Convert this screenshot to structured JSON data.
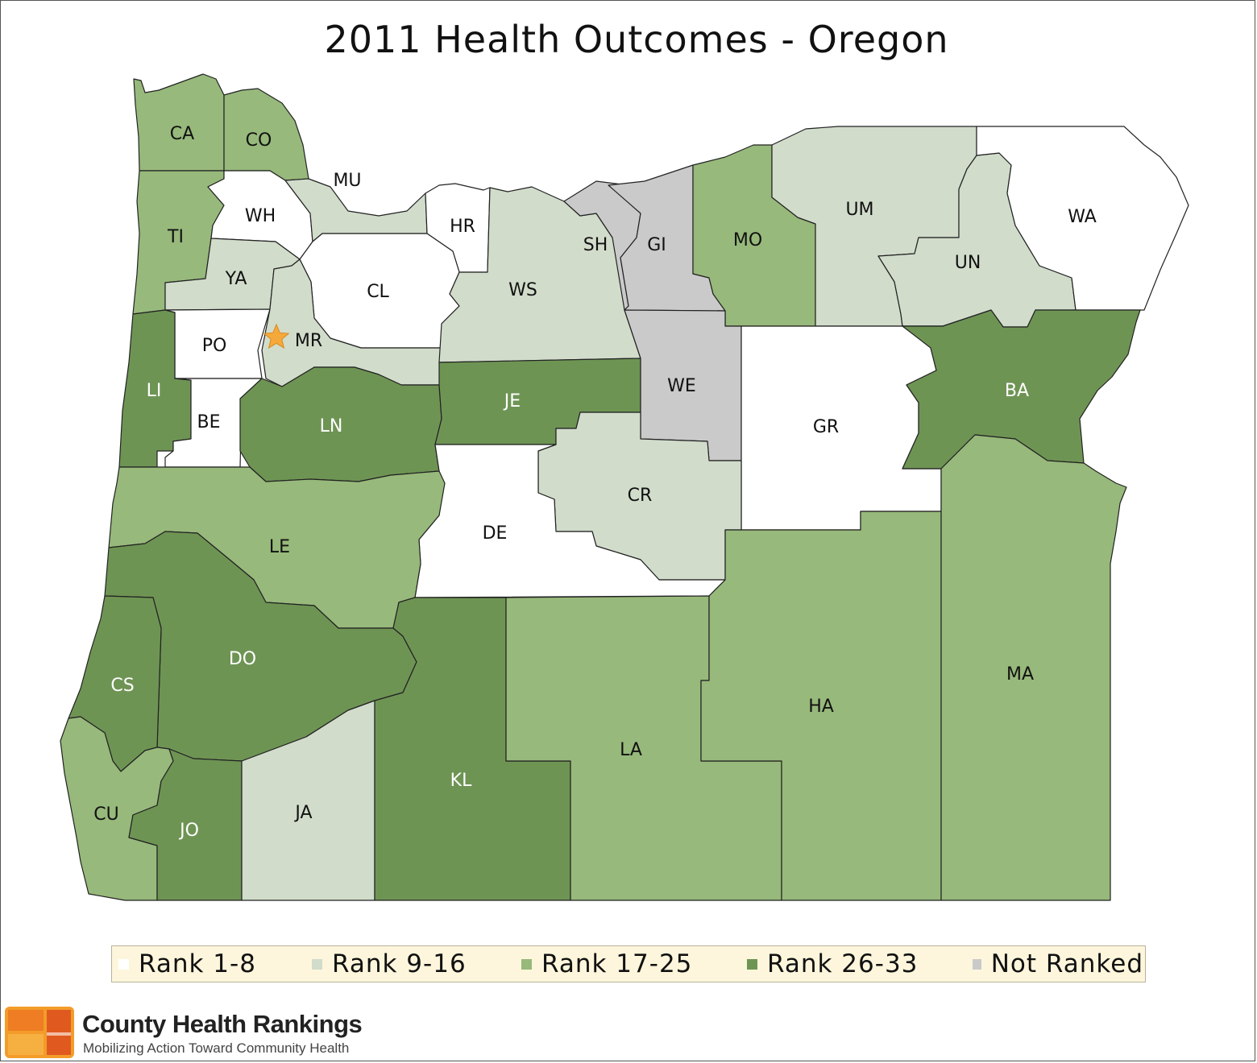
{
  "title": "2011 Health Outcomes - Oregon",
  "colors": {
    "rank_1_8": "#ffffff",
    "rank_9_16": "#d1dccb",
    "rank_17_25": "#97b97b",
    "rank_26_33": "#6e9454",
    "not_ranked": "#cacaca",
    "capital_star": "#f5a93a"
  },
  "legend": [
    {
      "label": "Rank 1-8",
      "category": "rank_1_8"
    },
    {
      "label": "Rank 9-16",
      "category": "rank_9_16"
    },
    {
      "label": "Rank 17-25",
      "category": "rank_17_25"
    },
    {
      "label": "Rank 26-33",
      "category": "rank_26_33"
    },
    {
      "label": "Not Ranked",
      "category": "not_ranked"
    }
  ],
  "counties": [
    {
      "code": "CA",
      "category": "rank_17_25"
    },
    {
      "code": "CO",
      "category": "rank_17_25"
    },
    {
      "code": "TI",
      "category": "rank_17_25"
    },
    {
      "code": "WH",
      "category": "rank_1_8"
    },
    {
      "code": "MU",
      "category": "rank_9_16"
    },
    {
      "code": "HR",
      "category": "rank_1_8"
    },
    {
      "code": "YA",
      "category": "rank_9_16"
    },
    {
      "code": "CL",
      "category": "rank_1_8"
    },
    {
      "code": "PO",
      "category": "rank_1_8"
    },
    {
      "code": "MR",
      "category": "rank_9_16"
    },
    {
      "code": "LI",
      "category": "rank_26_33"
    },
    {
      "code": "BE",
      "category": "rank_1_8"
    },
    {
      "code": "LN",
      "category": "rank_26_33"
    },
    {
      "code": "WS",
      "category": "rank_9_16"
    },
    {
      "code": "SH",
      "category": "not_ranked"
    },
    {
      "code": "GI",
      "category": "not_ranked"
    },
    {
      "code": "MO",
      "category": "rank_17_25"
    },
    {
      "code": "UM",
      "category": "rank_9_16"
    },
    {
      "code": "UN",
      "category": "rank_9_16"
    },
    {
      "code": "WA",
      "category": "rank_1_8"
    },
    {
      "code": "JE",
      "category": "rank_26_33"
    },
    {
      "code": "WE",
      "category": "not_ranked"
    },
    {
      "code": "GR",
      "category": "rank_1_8"
    },
    {
      "code": "BA",
      "category": "rank_26_33"
    },
    {
      "code": "CR",
      "category": "rank_9_16"
    },
    {
      "code": "DE",
      "category": "rank_1_8"
    },
    {
      "code": "LE",
      "category": "rank_17_25"
    },
    {
      "code": "DO",
      "category": "rank_26_33"
    },
    {
      "code": "CS",
      "category": "rank_26_33"
    },
    {
      "code": "CU",
      "category": "rank_17_25"
    },
    {
      "code": "JO",
      "category": "rank_26_33"
    },
    {
      "code": "JA",
      "category": "rank_9_16"
    },
    {
      "code": "KL",
      "category": "rank_26_33"
    },
    {
      "code": "LA",
      "category": "rank_17_25"
    },
    {
      "code": "HA",
      "category": "rank_17_25"
    },
    {
      "code": "MA",
      "category": "rank_17_25"
    }
  ],
  "capital_marker": {
    "county": "MR",
    "icon": "star-icon"
  },
  "brand": {
    "name": "County Health Rankings",
    "tagline": "Mobilizing Action Toward Community Health",
    "logo_colors": [
      "#f39c2a",
      "#ee7d23",
      "#e05a1f",
      "#f6b041"
    ]
  }
}
